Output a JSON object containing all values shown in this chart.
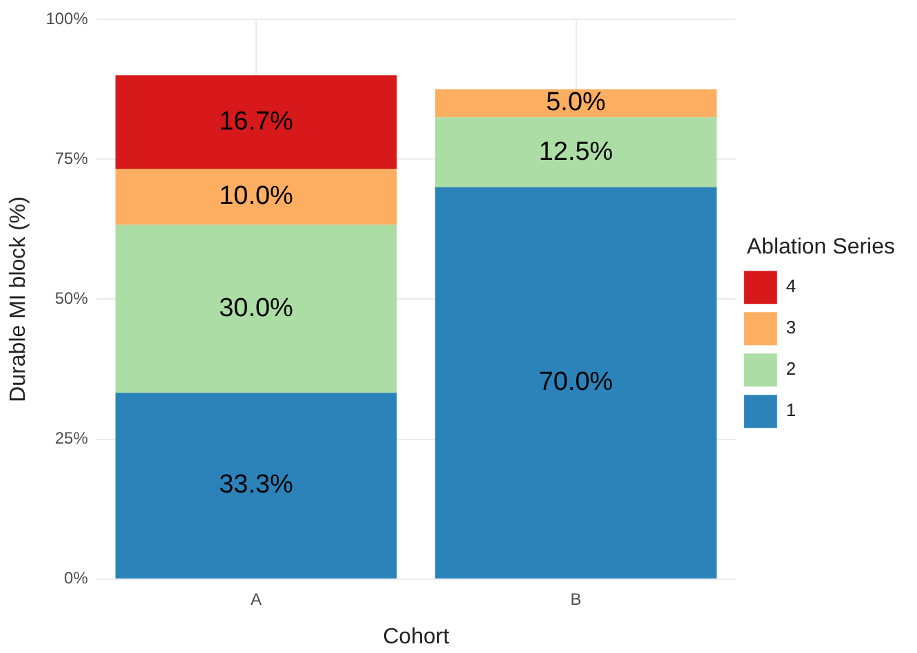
{
  "chart_data": {
    "type": "bar",
    "xlabel": "Cohort",
    "ylabel": "Durable MI block (%)",
    "legend_title": "Ablation Series",
    "categories": [
      "A",
      "B"
    ],
    "stacked": true,
    "series": [
      {
        "name": "1",
        "color": "#2b83ba",
        "values": [
          33.3,
          70.0
        ],
        "value_labels": [
          "33.3%",
          "70.0%"
        ]
      },
      {
        "name": "2",
        "color": "#abdda4",
        "values": [
          30.0,
          12.5
        ],
        "value_labels": [
          "30.0%",
          "12.5%"
        ]
      },
      {
        "name": "3",
        "color": "#fdae61",
        "values": [
          10.0,
          5.0
        ],
        "value_labels": [
          "10.0%",
          "5.0%"
        ]
      },
      {
        "name": "4",
        "color": "#d7191c",
        "values": [
          16.7,
          null
        ],
        "value_labels": [
          "16.7%",
          null
        ]
      }
    ],
    "ylim": [
      0,
      100
    ],
    "yticks": [
      {
        "value": 0,
        "label": "0%"
      },
      {
        "value": 25,
        "label": "25%"
      },
      {
        "value": 50,
        "label": "50%"
      },
      {
        "value": 75,
        "label": "75%"
      },
      {
        "value": 100,
        "label": "100%"
      }
    ],
    "grid": true,
    "legend": "right"
  }
}
